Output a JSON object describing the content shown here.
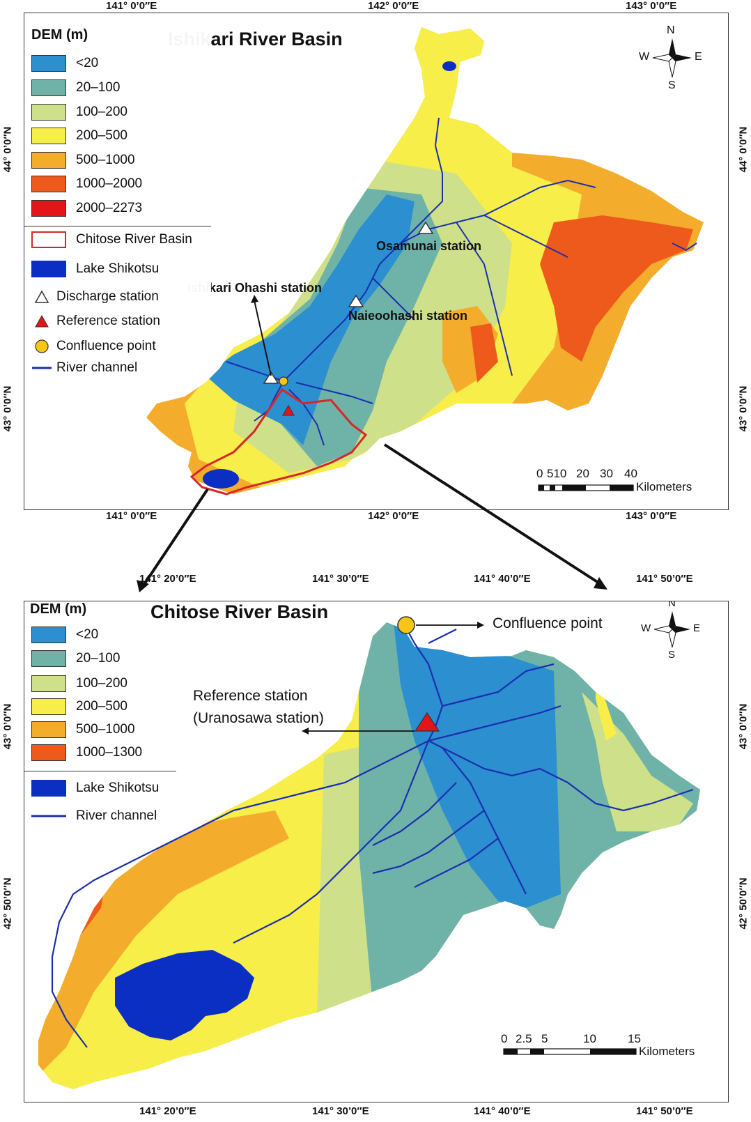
{
  "top_map": {
    "title": "Ishikari River Basin",
    "legend": {
      "heading": "DEM (m)",
      "classes": [
        {
          "label": "<20",
          "color": "#2b8fd0"
        },
        {
          "label": "20–100",
          "color": "#6fb3a8"
        },
        {
          "label": "100–200",
          "color": "#cfe08a"
        },
        {
          "label": "200–500",
          "color": "#f7ee4a"
        },
        {
          "label": "500–1000",
          "color": "#f4ac2d"
        },
        {
          "label": "1000–2000",
          "color": "#ee5a1c"
        },
        {
          "label": "2000–2273",
          "color": "#e3151a"
        }
      ],
      "items": [
        {
          "label": "Chitose River Basin",
          "symbol": "outline-box-icon",
          "color": "#d62728"
        },
        {
          "label": "Lake Shikotsu",
          "symbol": "filled-box-icon",
          "color": "#0b2fc2"
        },
        {
          "label": "Discharge station",
          "symbol": "white-triangle-icon",
          "color": "#ffffff"
        },
        {
          "label": "Reference station",
          "symbol": "red-triangle-icon",
          "color": "#e3151a"
        },
        {
          "label": "Confluence point",
          "symbol": "yellow-circle-icon",
          "color": "#f6c516"
        },
        {
          "label": "River channel",
          "symbol": "line-icon",
          "color": "#1a2fb0"
        }
      ]
    },
    "x_ticks": [
      "141° 0’0″E",
      "142° 0’0″E",
      "143° 0’0″E"
    ],
    "y_ticks": [
      "44° 0’0″N",
      "43° 0’0″N"
    ],
    "stations": [
      "Osamunai station",
      "Ishikari Ohashi station",
      "Naieoohashi station"
    ],
    "scale_labels": [
      "0",
      "510",
      "20",
      "30",
      "40"
    ],
    "scale_unit": "Kilometers",
    "compass": {
      "n": "N",
      "s": "S",
      "e": "E",
      "w": "W"
    }
  },
  "bottom_map": {
    "title": "Chitose River Basin",
    "legend": {
      "heading": "DEM (m)",
      "classes": [
        {
          "label": "<20",
          "color": "#2b8fd0"
        },
        {
          "label": "20–100",
          "color": "#6fb3a8"
        },
        {
          "label": "100–200",
          "color": "#cfe08a"
        },
        {
          "label": "200–500",
          "color": "#f7ee4a"
        },
        {
          "label": "500–1000",
          "color": "#f4ac2d"
        },
        {
          "label": "1000–1300",
          "color": "#ee5a1c"
        }
      ],
      "items": [
        {
          "label": "Lake Shikotsu",
          "symbol": "filled-box-icon",
          "color": "#0b2fc2"
        },
        {
          "label": "River channel",
          "symbol": "line-icon",
          "color": "#1a2fb0"
        }
      ]
    },
    "x_ticks": [
      "141° 20’0″E",
      "141° 30’0″E",
      "141° 40’0″E",
      "141° 50’0″E"
    ],
    "y_ticks": [
      "43° 0’0″N",
      "42° 50’0″N"
    ],
    "confluence_label": "Confluence point",
    "reference_label_1": "Reference station",
    "reference_label_2": "(Uranosawa station)",
    "scale_labels": [
      "0",
      "2.5",
      "5",
      "10",
      "15"
    ],
    "scale_unit": "Kilometers",
    "compass": {
      "n": "N",
      "s": "S",
      "e": "E",
      "w": "W"
    }
  }
}
